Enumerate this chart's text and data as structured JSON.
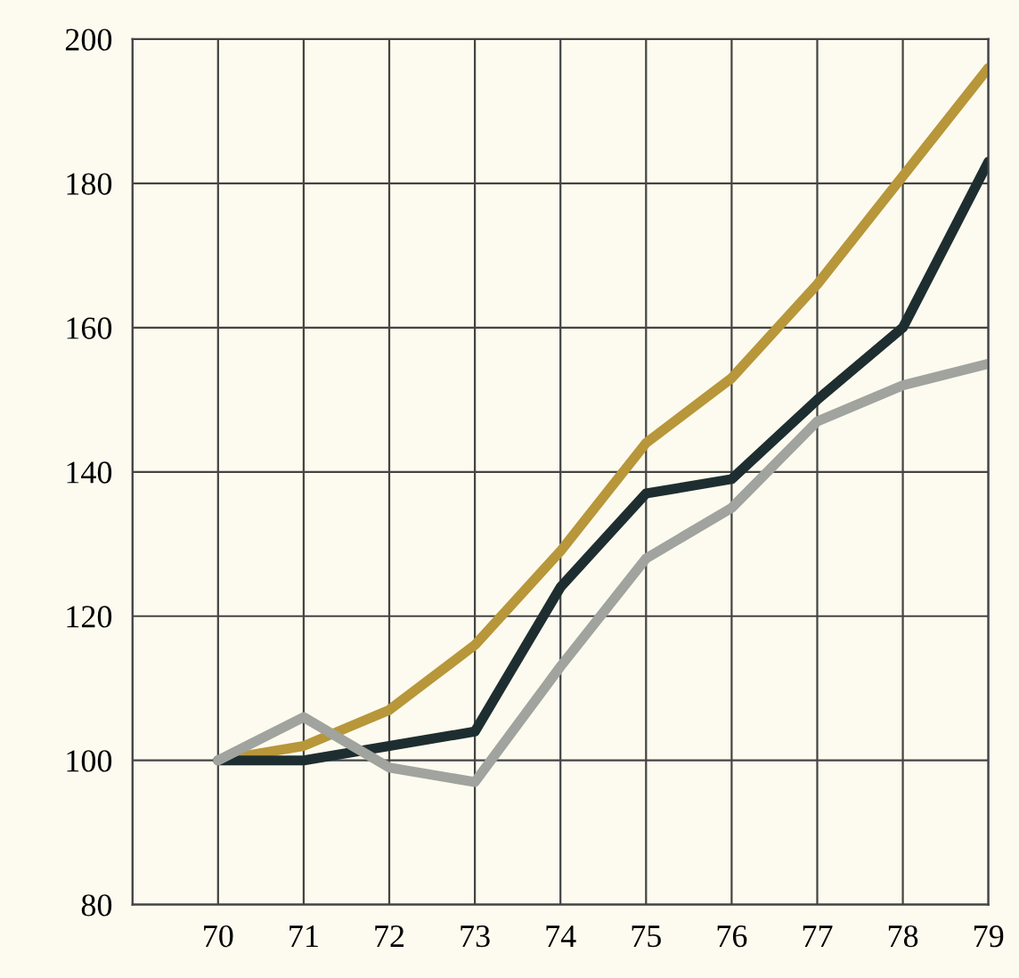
{
  "chart_data": {
    "type": "line",
    "x": [
      70,
      71,
      72,
      73,
      74,
      75,
      76,
      77,
      78,
      79
    ],
    "series": [
      {
        "color": "#b8963a",
        "values": [
          100,
          102,
          107,
          116,
          129,
          144,
          153,
          166,
          181,
          196
        ]
      },
      {
        "color": "#1e2e30",
        "values": [
          100,
          100,
          102,
          104,
          124,
          137,
          139,
          150,
          160,
          183
        ]
      },
      {
        "color": "#a0a39e",
        "values": [
          100,
          106,
          99,
          97,
          113,
          128,
          135,
          147,
          152,
          155
        ]
      }
    ],
    "xlim": [
      69,
      79
    ],
    "xticks": [
      {
        "value": 69,
        "label": null
      },
      70,
      71,
      72,
      73,
      74,
      75,
      76,
      77,
      78,
      79
    ],
    "ylim": [
      80,
      200
    ],
    "yticks": [
      80,
      100,
      120,
      140,
      160,
      180,
      200
    ],
    "grid": true,
    "marker": "none",
    "line_style": "solid",
    "legend": false
  }
}
